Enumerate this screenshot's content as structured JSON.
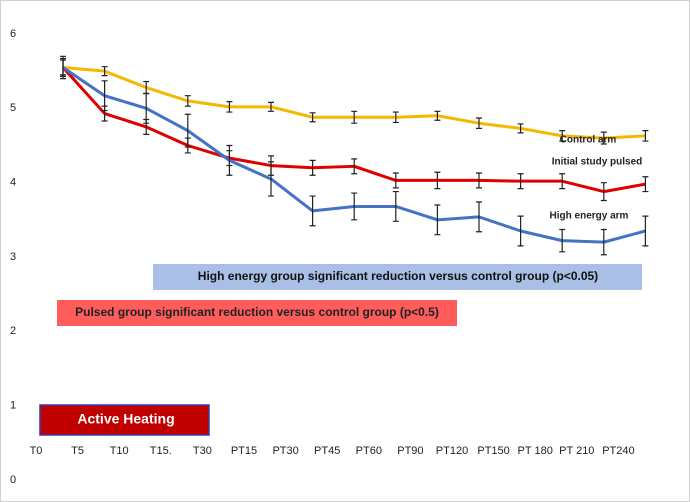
{
  "chart_data": {
    "type": "line",
    "categories": [
      "T0",
      "T5",
      "T10",
      "T15.",
      "T30",
      "PT15",
      "PT30",
      "PT45",
      "PT60",
      "PT90",
      "PT120",
      "PT150",
      "PT 180",
      "PT 210",
      "PT240"
    ],
    "series": [
      {
        "name": "Control arm",
        "color": "#f5b800",
        "values": [
          5.55,
          5.5,
          5.28,
          5.1,
          5.02,
          5.02,
          4.88,
          4.88,
          4.88,
          4.9,
          4.8,
          4.73,
          4.63,
          4.6,
          4.63
        ],
        "errors": [
          0.1,
          0.06,
          0.08,
          0.07,
          0.07,
          0.06,
          0.06,
          0.08,
          0.07,
          0.06,
          0.07,
          0.06,
          0.07,
          0.08,
          0.07
        ]
      },
      {
        "name": "Initial study pulsed",
        "color": "#e00000",
        "values": [
          5.55,
          4.93,
          4.75,
          4.5,
          4.33,
          4.23,
          4.2,
          4.22,
          4.03,
          4.03,
          4.03,
          4.02,
          4.02,
          3.88,
          3.98
        ],
        "errors": [
          0.12,
          0.1,
          0.1,
          0.1,
          0.1,
          0.13,
          0.1,
          0.1,
          0.1,
          0.11,
          0.1,
          0.1,
          0.1,
          0.12,
          0.1
        ]
      },
      {
        "name": "High energy arm",
        "color": "#4472c4",
        "values": [
          5.55,
          5.17,
          5.0,
          4.7,
          4.3,
          4.05,
          3.62,
          3.68,
          3.68,
          3.5,
          3.54,
          3.35,
          3.22,
          3.2,
          3.35
        ],
        "errors": [
          0.15,
          0.2,
          0.2,
          0.22,
          0.2,
          0.23,
          0.2,
          0.18,
          0.2,
          0.2,
          0.2,
          0.2,
          0.15,
          0.17,
          0.2
        ]
      }
    ],
    "annotations": [
      "High energy group significant reduction versus control group (p<0.05)",
      "Pulsed group significant reduction versus control group (p<0.5)",
      "Active Heating"
    ],
    "ylim": [
      0,
      6
    ],
    "yticks": [
      0,
      1,
      2,
      3,
      4,
      5,
      6
    ],
    "grid": false
  }
}
